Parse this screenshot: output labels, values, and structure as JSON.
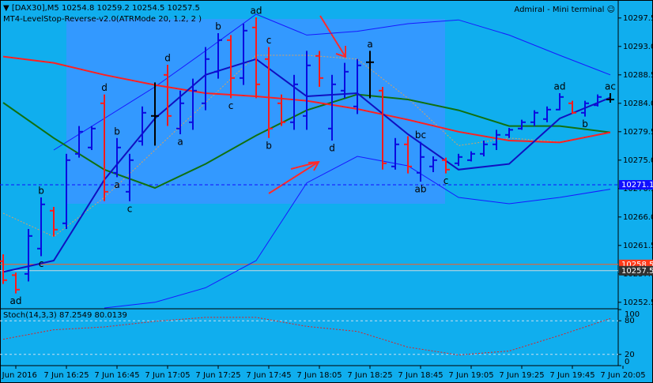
{
  "chart_data": [
    {
      "type": "ohlc",
      "title": "▼ [DAX30],M5  10254.8 10259.2 10254.5 10257.5",
      "subtitle": "MT4-LevelStop-Reverse-v2.0(ATRMode 20, 1.2, 2 )",
      "annotation": "Admiral - Mini terminal ☺",
      "open": [
        10259,
        10256.8,
        10257,
        10261,
        10267,
        10265,
        10276,
        10277,
        10284,
        10273,
        10270,
        10278,
        10282,
        10288.5,
        10280,
        10281,
        10284,
        10289,
        10294,
        10288,
        10296,
        10291,
        10284,
        10281,
        10282,
        10291.5,
        10280,
        10286,
        10283.5,
        10290.5,
        10286,
        10274,
        10277.5,
        10273,
        10274,
        10275,
        10274.5,
        10275,
        10276,
        10277.5,
        10279,
        10280,
        10281,
        10281.5,
        10283,
        10284,
        10282.5,
        10283.7,
        10284.6
      ],
      "high": [
        10260.1,
        10257.2,
        10264.1,
        10269.1,
        10267.6,
        10276,
        10280.4,
        10280.4,
        10285.4,
        10278.5,
        10276,
        10283.5,
        10287.3,
        10290.1,
        10286,
        10287.9,
        10292.9,
        10295.1,
        10294.8,
        10296.6,
        10297.6,
        10292.9,
        10285.4,
        10288.5,
        10292.3,
        10292.3,
        10288.5,
        10290.4,
        10291,
        10292.3,
        10286.6,
        10278.5,
        10278.8,
        10277.9,
        10275.6,
        10275.4,
        10276,
        10276.4,
        10278.1,
        10279.8,
        10280.1,
        10281.4,
        10282.9,
        10283.5,
        10285.6,
        10284.4,
        10284.4,
        10285.4,
        10285.6
      ],
      "low": [
        10255.4,
        10253.9,
        10255.8,
        10259.8,
        10262.9,
        10264.1,
        10275.4,
        10276.6,
        10268.5,
        10272.3,
        10268.5,
        10277.3,
        10277.3,
        10280.4,
        10279.1,
        10279.8,
        10282.9,
        10287.9,
        10284.8,
        10286.9,
        10284.8,
        10278.5,
        10280.4,
        10279.8,
        10279.8,
        10286.6,
        10278.1,
        10284.8,
        10282.3,
        10284.8,
        10273.5,
        10273.5,
        10272.9,
        10271.6,
        10273.1,
        10272.9,
        10274.1,
        10274.8,
        10275.6,
        10276.6,
        10278.5,
        10279.8,
        10280.4,
        10281,
        10282.9,
        10282.3,
        10281.9,
        10283.5,
        10284.1
      ],
      "close": [
        10256,
        10254.5,
        10263,
        10268,
        10264,
        10275,
        10279.5,
        10280,
        10270,
        10277,
        10275,
        10282.5,
        10282,
        10282,
        10284,
        10286,
        10291,
        10294,
        10288,
        10295.5,
        10287,
        10280,
        10281,
        10287,
        10290,
        10288,
        10287,
        10289,
        10290,
        10290.5,
        10274.5,
        10277.5,
        10274,
        10275.5,
        10275,
        10273.5,
        10275.5,
        10276,
        10277.5,
        10279,
        10279.8,
        10281,
        10282.5,
        10283,
        10285,
        10282.5,
        10284,
        10285,
        10284.6
      ],
      "up_color": "#0a0ae0",
      "down_color": "#ff1a1a",
      "flat_color": "#000000",
      "xlim": [
        -0.25,
        48.625
      ],
      "ylim": [
        10251.6,
        10300.1
      ],
      "yticks": [
        10297.5,
        {
          "value": 10293,
          "label": "10293.0"
        },
        10288.5,
        {
          "value": 10284,
          "label": "10284.0"
        },
        10279.5,
        {
          "value": 10275,
          "label": "10275.0"
        },
        10270.5,
        {
          "value": 10266,
          "label": "10266.0"
        },
        10261.5,
        {
          "value": 10257,
          "label": "10257.0"
        },
        10252.5
      ],
      "line_x": [
        0,
        4,
        8,
        12,
        16,
        20,
        24,
        28,
        32,
        36,
        40,
        44,
        48
      ],
      "lines": [
        {
          "color": "#1818ff",
          "width": 1,
          "style": "solid",
          "values": [
            null,
            10276.6,
            10281.6,
            10286.6,
            10292.3,
            10298.1,
            10294.8,
            10295.4,
            10296.6,
            10297.2,
            10294.8,
            10291.6,
            10288.5
          ]
        },
        {
          "color": "#1818ff",
          "width": 1,
          "style": "solid",
          "values": [
            null,
            null,
            10251.6,
            10252.5,
            10254.8,
            10259.1,
            10271.4,
            10275.6,
            10274.1,
            10269.1,
            10268.1,
            10269.1,
            10270.4
          ]
        },
        {
          "color": "#d9a060",
          "width": 1,
          "style": "dotted",
          "values": [
            10266.6,
            10262.9,
            10269.1,
            10276.6,
            10284.1,
            10291.6,
            10291.6,
            10291,
            10284.8,
            10277.3,
            10278.5,
            10277.9,
            10279.4
          ]
        },
        {
          "color": "#107010",
          "width": 2,
          "style": "solid",
          "values": [
            10284.1,
            10278.5,
            10273.5,
            10270.6,
            10274.4,
            10278.9,
            10282.9,
            10285.4,
            10284.6,
            10282.9,
            10280.4,
            10280.4,
            10279.4
          ]
        },
        {
          "color": "#ff2020",
          "width": 2,
          "style": "solid",
          "values": [
            10291.4,
            10290.4,
            10288.5,
            10286.9,
            10285.6,
            10285.1,
            10284.4,
            10283.1,
            10281.4,
            10279.5,
            10278.1,
            10277.8,
            10279.4
          ]
        },
        {
          "color": "#1010c0",
          "width": 2,
          "style": "solid",
          "values": [
            10257.3,
            10259.1,
            10271.9,
            10281.6,
            10288.5,
            10291,
            10285.1,
            10285.6,
            10279.1,
            10273.5,
            10274.4,
            10281.6,
            10284.9
          ]
        }
      ],
      "levels": [
        {
          "value": 10271.1,
          "color": "#1010ff",
          "style": "dashed",
          "box": "#1010ff"
        },
        {
          "value": 10258.5,
          "color": "#ff5a1a",
          "style": "solid",
          "box": "#ff3a1a"
        },
        {
          "value": 10257.5,
          "color": "#c8d8e0",
          "style": "solid",
          "box": "#303030"
        }
      ],
      "wave_labels": [
        {
          "text": "ad",
          "bar": 1,
          "side": "below"
        },
        {
          "text": "b",
          "bar": 3,
          "side": "above"
        },
        {
          "text": "c",
          "bar": 3,
          "side": "below"
        },
        {
          "text": "d",
          "bar": 8,
          "side": "above"
        },
        {
          "text": "b",
          "bar": 9,
          "side": "above"
        },
        {
          "text": "a",
          "bar": 9,
          "side": "below"
        },
        {
          "text": "c",
          "bar": 10,
          "side": "below"
        },
        {
          "text": "d",
          "bar": 13,
          "side": "above"
        },
        {
          "text": "a",
          "bar": 14,
          "side": "below"
        },
        {
          "text": "b",
          "bar": 17,
          "side": "above"
        },
        {
          "text": "c",
          "bar": 18,
          "side": "below"
        },
        {
          "text": "ad",
          "bar": 20,
          "side": "above"
        },
        {
          "text": "c",
          "bar": 21,
          "side": "above"
        },
        {
          "text": "b",
          "bar": 21,
          "side": "below"
        },
        {
          "text": "d",
          "bar": 26,
          "side": "below"
        },
        {
          "text": "a",
          "bar": 29,
          "side": "above"
        },
        {
          "text": "bc",
          "bar": 33,
          "side": "above"
        },
        {
          "text": "ab",
          "bar": 33,
          "side": "below"
        },
        {
          "text": "c",
          "bar": 35,
          "side": "below"
        },
        {
          "text": "ad",
          "bar": 44,
          "side": "above"
        },
        {
          "text": "b",
          "bar": 46,
          "side": "below"
        },
        {
          "text": "ac",
          "bar": 48,
          "side": "above"
        }
      ]
    },
    {
      "type": "line",
      "title": "Stoch(14,3,3) 87.2549 80.0139",
      "x": [
        0,
        4,
        8,
        12,
        16,
        20,
        24,
        28,
        32,
        36,
        40,
        44,
        48
      ],
      "xlim": [
        -0.25,
        48.625
      ],
      "xticks": [
        {
          "value": 1,
          "label": "7 Jun 2016"
        },
        {
          "value": 5,
          "label": "7 Jun 16:25"
        },
        {
          "value": 9,
          "label": "7 Jun 16:45"
        },
        {
          "value": 13,
          "label": "7 Jun 17:05"
        },
        {
          "value": 17,
          "label": "7 Jun 17:25"
        },
        {
          "value": 21,
          "label": "7 Jun 17:45"
        },
        {
          "value": 25,
          "label": "7 Jun 18:05"
        },
        {
          "value": 29,
          "label": "7 Jun 18:25"
        },
        {
          "value": 33,
          "label": "7 Jun 18:45"
        },
        {
          "value": 37,
          "label": "7 Jun 19:05"
        },
        {
          "value": 41,
          "label": "7 Jun 19:25"
        },
        {
          "value": 45,
          "label": "7 Jun 19:45"
        },
        {
          "value": 49,
          "label": "7 Jun 20:05"
        }
      ],
      "ylim": [
        0,
        100
      ],
      "yticks": [
        0,
        20,
        80,
        100
      ],
      "series": [
        {
          "color": "#e02020",
          "values": [
            47,
            64,
            69,
            79,
            86,
            86,
            70,
            61,
            33,
            19,
            26,
            54,
            84
          ]
        }
      ]
    }
  ]
}
